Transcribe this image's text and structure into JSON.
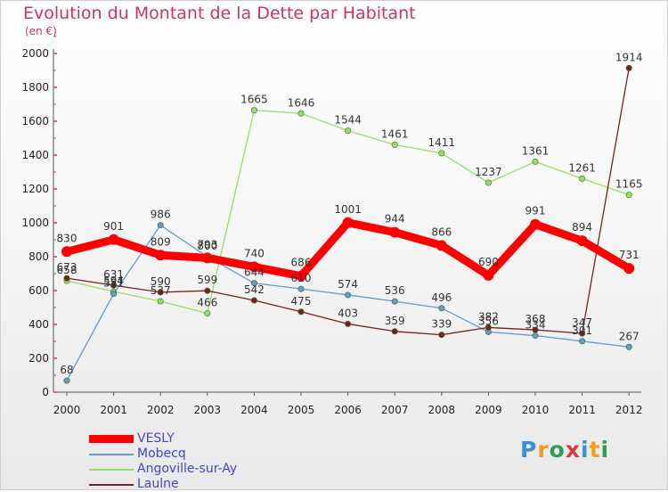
{
  "header": {
    "title": "Evolution du Montant de la Dette par Habitant",
    "subtitle": "(en €)"
  },
  "logo": {
    "text": "Proxiti",
    "letters": [
      "P",
      "r",
      "o",
      "x",
      "i",
      "t",
      "i"
    ],
    "colors": [
      "#3b8fd6",
      "#f0a020",
      "#2a9f55",
      "#d63b3b",
      "#3b8fd6",
      "#f0a020",
      "#2a9f55"
    ]
  },
  "chart_data": {
    "type": "line",
    "categories": [
      "2000",
      "2001",
      "2002",
      "2003",
      "2004",
      "2005",
      "2006",
      "2007",
      "2008",
      "2009",
      "2010",
      "2011",
      "2012"
    ],
    "ylim": [
      0,
      2000
    ],
    "yticks": [
      0,
      200,
      400,
      600,
      800,
      1000,
      1200,
      1400,
      1600,
      1800,
      2000
    ],
    "grid": false,
    "legend_position": "bottom-left",
    "series": [
      {
        "name": "VESLY",
        "color": "#ff0000",
        "values": [
          830,
          901,
          809,
          793,
          740,
          686,
          1001,
          944,
          866,
          690,
          991,
          894,
          731
        ]
      },
      {
        "name": "Mobecq",
        "color": "#6699cc",
        "values": [
          68,
          581,
          986,
          800,
          644,
          610,
          574,
          536,
          496,
          356,
          334,
          301,
          267
        ]
      },
      {
        "name": "Angoville-sur-Ay",
        "color": "#99dd66",
        "values": [
          658,
          594,
          537,
          466,
          1665,
          1646,
          1544,
          1461,
          1411,
          1237,
          1361,
          1261,
          1165
        ]
      },
      {
        "name": "Laulne",
        "color": "#772222",
        "values": [
          673,
          631,
          590,
          599,
          542,
          475,
          403,
          359,
          339,
          382,
          368,
          347,
          1914
        ]
      }
    ]
  }
}
